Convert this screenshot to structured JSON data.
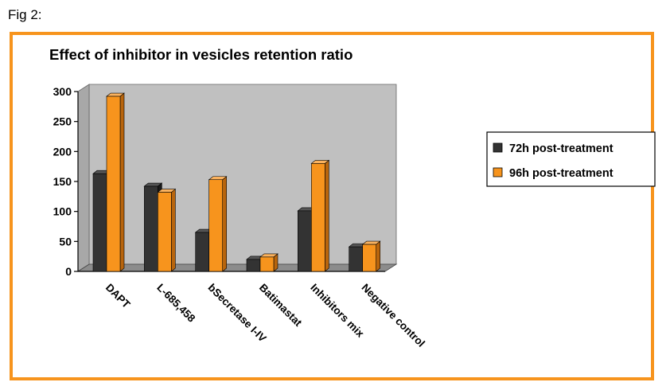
{
  "figure_label": "Fig 2:",
  "colors": {
    "frame": "#f7941d",
    "wall": "#c0c0c0",
    "series_dark_front": "#333333",
    "series_dark_side": "#1a1a1a",
    "series_dark_top": "#555555",
    "series_orange_front": "#f7941d",
    "series_orange_side": "#b8650d",
    "series_orange_top": "#fbb25e"
  },
  "chart_data": {
    "type": "bar",
    "title": "Effect of inhibitor in vesicles retention ratio",
    "xlabel": "",
    "ylabel": "",
    "categories": [
      "DAPT",
      "L-685,458",
      "bSecretase I-IV",
      "Batimastat",
      "Inhibitors mix",
      "Negative control"
    ],
    "series": [
      {
        "name": "72h post-treatment",
        "values": [
          163,
          142,
          65,
          20,
          101,
          41
        ]
      },
      {
        "name": "96h post-treatment",
        "values": [
          292,
          132,
          153,
          24,
          180,
          45
        ]
      }
    ],
    "ylim": [
      0,
      300
    ],
    "yticks": [
      "0",
      "50",
      "100",
      "150",
      "200",
      "250",
      "300"
    ],
    "grid": false,
    "legend": "right",
    "style": "3d-clustered-column"
  }
}
